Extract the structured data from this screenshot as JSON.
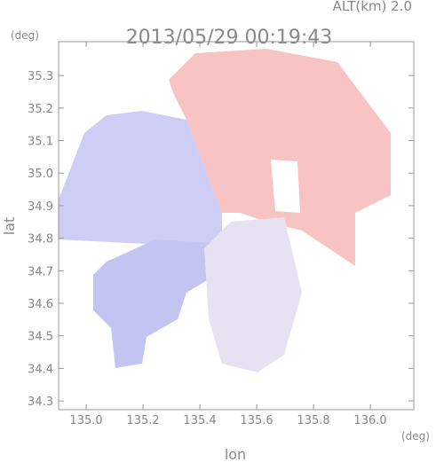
{
  "chart_data": {
    "type": "radar",
    "title": "2013/05/29 00:19:43",
    "subtitle": "ALT(km) 2.0",
    "x_label": "lon",
    "y_label": "lat",
    "x_unit": "(deg)",
    "y_unit": "(deg)",
    "xlim": [
      134.903,
      136.153
    ],
    "ylim": [
      34.273,
      35.404
    ],
    "xticks": [
      {
        "value": 135,
        "label": "135.0"
      },
      135.2,
      135.4,
      135.6,
      135.8,
      {
        "value": 136,
        "label": "136.0"
      }
    ],
    "yticks": [
      34.3,
      34.4,
      34.5,
      34.6,
      34.7,
      34.8,
      34.9,
      {
        "value": 35,
        "label": "35.0"
      },
      35.1,
      35.2,
      35.3
    ]
  }
}
